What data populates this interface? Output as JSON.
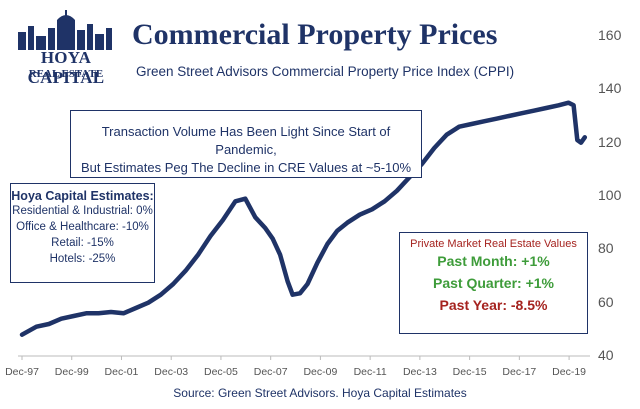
{
  "logo": {
    "name": "HOYA CAPITAL",
    "sub": "REAL ESTATE"
  },
  "colors": {
    "navy": "#1f3367",
    "green": "#3e9c3a",
    "red": "#a5231f",
    "line": "#1f3367"
  },
  "note": {
    "line1": "Transaction Volume Has Been Light Since Start of Pandemic,",
    "line2": "But Estimates Peg The Decline in CRE Values at ~5-10%"
  },
  "estimates": {
    "title": "Hoya Capital Estimates:",
    "items": [
      "Residential & Industrial: 0%",
      "Office & Healthcare: -10%",
      "Retail: -15%",
      "Hotels: -25%"
    ]
  },
  "private_market": {
    "title": "Private Market Real Estate Values",
    "past_month": "Past Month: +1%",
    "past_quarter": "Past Quarter: +1%",
    "past_year": "Past Year: -8.5%"
  },
  "source": "Source: Green Street Advisors. Hoya Capital Estimates",
  "chart_data": {
    "type": "line",
    "title": "Commercial Property Prices",
    "subtitle": "Green Street Advisors Commercial Property Price Index (CPPI)",
    "x_tick_labels": [
      "Dec-97",
      "Dec-99",
      "Dec-01",
      "Dec-03",
      "Dec-05",
      "Dec-07",
      "Dec-09",
      "Dec-11",
      "Dec-13",
      "Dec-15",
      "Dec-17",
      "Dec-19"
    ],
    "y_ticks": [
      40,
      60,
      80,
      100,
      120,
      140,
      160
    ],
    "ylim": [
      40,
      160
    ],
    "xlim": [
      1997.92,
      2020.6
    ],
    "grid": false,
    "series": [
      {
        "x": [
          1997.92,
          1998.5,
          1999.0,
          1999.5,
          2000.0,
          2000.5,
          2001.0,
          2001.5,
          2002.0,
          2002.5,
          2003.0,
          2003.5,
          2004.0,
          2004.5,
          2005.0,
          2005.5,
          2006.0,
          2006.5,
          2006.9,
          2007.3,
          2007.7,
          2008.0,
          2008.3,
          2008.6,
          2008.8,
          2009.1,
          2009.4,
          2009.8,
          2010.2,
          2010.6,
          2011.0,
          2011.5,
          2012.0,
          2012.5,
          2013.0,
          2013.5,
          2014.0,
          2014.5,
          2015.0,
          2015.5,
          2016.0,
          2016.5,
          2017.0,
          2017.5,
          2018.0,
          2018.5,
          2019.0,
          2019.5,
          2019.9,
          2020.1,
          2020.25,
          2020.4,
          2020.55
        ],
        "values": [
          48,
          51,
          52,
          54,
          55,
          56,
          56,
          56.5,
          56,
          58,
          60,
          63,
          67,
          72,
          78,
          85,
          91,
          98,
          99,
          92,
          88,
          84,
          78,
          68,
          63,
          63.5,
          67,
          75,
          82,
          87,
          90,
          93,
          95,
          98,
          102,
          107,
          112,
          118,
          123,
          126,
          127,
          128,
          129,
          130,
          131,
          132,
          133,
          134,
          135,
          134,
          121,
          120,
          122
        ]
      }
    ]
  }
}
